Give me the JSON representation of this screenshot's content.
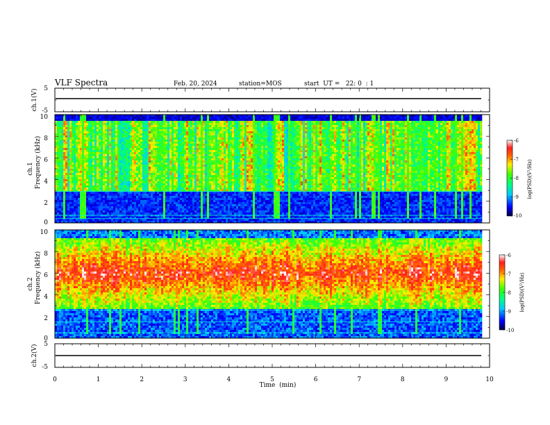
{
  "header": {
    "title": "VLF Spectra",
    "date": "Feb. 20, 2024",
    "station": "station=MOS",
    "start": "start  UT =   22: 0  : 1"
  },
  "chart_data": {
    "type": "heatmap",
    "x_axis": {
      "label": "Time  (min)",
      "range": [
        0,
        10
      ],
      "ticks": [
        "0",
        "1",
        "2",
        "3",
        "4",
        "5",
        "6",
        "7",
        "8",
        "9",
        "10"
      ]
    },
    "panels": [
      {
        "name": "ch1-voltage",
        "ylabel": "ch.1(V)",
        "yrange": [
          -5,
          5
        ],
        "ticks": [
          "5",
          "-5"
        ]
      },
      {
        "name": "ch1-spectrogram",
        "ylabel_line1": "ch.1",
        "ylabel_line2": "Frequency (kHz)",
        "yrange": [
          0,
          10
        ],
        "ticks": [
          "0",
          "2",
          "4",
          "6",
          "8",
          "10"
        ],
        "colorbar": {
          "label": "log(PSD)(V²/Hz)",
          "range": [
            -10,
            -6
          ],
          "ticks": [
            "-10",
            "-9",
            "-8",
            "-7",
            "-6"
          ]
        }
      },
      {
        "name": "ch2-spectrogram",
        "ylabel_line1": "ch.2",
        "ylabel_line2": "Frequency (kHz)",
        "yrange": [
          0,
          10
        ],
        "ticks": [
          "0",
          "2",
          "4",
          "6",
          "8",
          "10"
        ],
        "colorbar": {
          "label": "log(PSD)(V²/Hz)",
          "range": [
            -10,
            -6
          ],
          "ticks": [
            "-10",
            "-9",
            "-8",
            "-7",
            "-6"
          ]
        }
      },
      {
        "name": "ch2-voltage",
        "ylabel": "ch.2(V)",
        "yrange": [
          -5,
          5
        ],
        "ticks": [
          "5",
          "-5"
        ]
      }
    ]
  }
}
